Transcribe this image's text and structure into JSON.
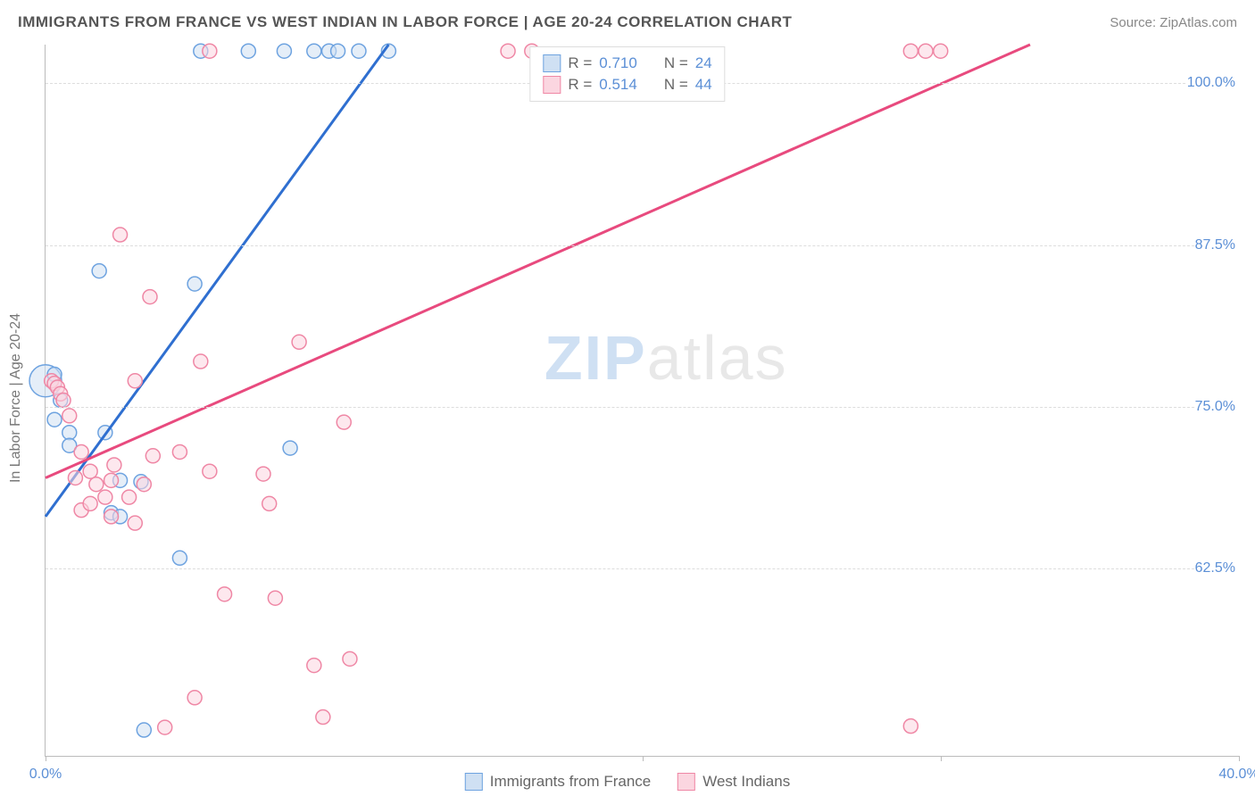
{
  "header": {
    "title": "IMMIGRANTS FROM FRANCE VS WEST INDIAN IN LABOR FORCE | AGE 20-24 CORRELATION CHART",
    "source_label": "Source:",
    "source_name": "ZipAtlas.com"
  },
  "watermark": {
    "part1": "ZIP",
    "part2": "atlas"
  },
  "chart": {
    "type": "scatter",
    "y_axis_title": "In Labor Force | Age 20-24",
    "background_color": "#ffffff",
    "grid_color": "#dddddd",
    "axis_color": "#bbbbbb",
    "tick_label_color": "#5b8fd6",
    "xlim": [
      0,
      40
    ],
    "ylim": [
      48,
      103
    ],
    "xticks": [
      {
        "v": 0.0,
        "label": "0.0%"
      },
      {
        "v": 20.0,
        "label": ""
      },
      {
        "v": 30.0,
        "label": ""
      },
      {
        "v": 40.0,
        "label": "40.0%"
      }
    ],
    "yticks": [
      {
        "v": 62.5,
        "label": "62.5%"
      },
      {
        "v": 75.0,
        "label": "75.0%"
      },
      {
        "v": 87.5,
        "label": "87.5%"
      },
      {
        "v": 100.0,
        "label": "100.0%"
      }
    ],
    "series": [
      {
        "name": "Immigrants from France",
        "fill": "#cfe0f3",
        "stroke": "#6ea3e0",
        "line_color": "#2f6fd0",
        "marker_radius_default": 8,
        "R": "0.710",
        "N": "24",
        "trend": {
          "x1": 0.0,
          "y1": 66.5,
          "x2": 11.5,
          "y2": 103.0
        },
        "points": [
          {
            "x": 0.0,
            "y": 77.0,
            "r": 18
          },
          {
            "x": 0.3,
            "y": 77.5
          },
          {
            "x": 0.3,
            "y": 74.0
          },
          {
            "x": 0.5,
            "y": 75.5
          },
          {
            "x": 0.8,
            "y": 73.0
          },
          {
            "x": 0.8,
            "y": 72.0
          },
          {
            "x": 1.8,
            "y": 85.5
          },
          {
            "x": 2.0,
            "y": 73.0
          },
          {
            "x": 2.2,
            "y": 66.8
          },
          {
            "x": 2.5,
            "y": 69.3
          },
          {
            "x": 2.5,
            "y": 66.5
          },
          {
            "x": 3.2,
            "y": 69.2
          },
          {
            "x": 3.3,
            "y": 50.0
          },
          {
            "x": 4.5,
            "y": 63.3
          },
          {
            "x": 5.0,
            "y": 84.5
          },
          {
            "x": 5.2,
            "y": 102.5
          },
          {
            "x": 6.8,
            "y": 102.5
          },
          {
            "x": 8.0,
            "y": 102.5
          },
          {
            "x": 8.2,
            "y": 71.8
          },
          {
            "x": 9.0,
            "y": 102.5
          },
          {
            "x": 9.5,
            "y": 102.5
          },
          {
            "x": 9.8,
            "y": 102.5
          },
          {
            "x": 10.5,
            "y": 102.5
          },
          {
            "x": 11.5,
            "y": 102.5
          }
        ]
      },
      {
        "name": "West Indians",
        "fill": "#fbd6e0",
        "stroke": "#ef87a5",
        "line_color": "#e84a7e",
        "marker_radius_default": 8,
        "R": "0.514",
        "N": "44",
        "trend": {
          "x1": 0.0,
          "y1": 69.5,
          "x2": 33.0,
          "y2": 103.0
        },
        "points": [
          {
            "x": 0.2,
            "y": 77.0
          },
          {
            "x": 0.3,
            "y": 76.8
          },
          {
            "x": 0.4,
            "y": 76.5
          },
          {
            "x": 0.5,
            "y": 76.0
          },
          {
            "x": 0.6,
            "y": 75.5
          },
          {
            "x": 0.8,
            "y": 74.3
          },
          {
            "x": 1.0,
            "y": 69.5
          },
          {
            "x": 1.2,
            "y": 71.5
          },
          {
            "x": 1.2,
            "y": 67.0
          },
          {
            "x": 1.5,
            "y": 70.0
          },
          {
            "x": 1.5,
            "y": 67.5
          },
          {
            "x": 1.7,
            "y": 69.0
          },
          {
            "x": 2.0,
            "y": 68.0
          },
          {
            "x": 2.2,
            "y": 69.3
          },
          {
            "x": 2.2,
            "y": 66.5
          },
          {
            "x": 2.3,
            "y": 70.5
          },
          {
            "x": 2.5,
            "y": 88.3
          },
          {
            "x": 2.8,
            "y": 68.0
          },
          {
            "x": 3.0,
            "y": 66.0
          },
          {
            "x": 3.0,
            "y": 77.0
          },
          {
            "x": 3.3,
            "y": 69.0
          },
          {
            "x": 3.5,
            "y": 83.5
          },
          {
            "x": 3.6,
            "y": 71.2
          },
          {
            "x": 4.0,
            "y": 50.2
          },
          {
            "x": 4.5,
            "y": 71.5
          },
          {
            "x": 5.0,
            "y": 52.5
          },
          {
            "x": 5.2,
            "y": 78.5
          },
          {
            "x": 5.5,
            "y": 102.5
          },
          {
            "x": 5.5,
            "y": 70.0
          },
          {
            "x": 6.0,
            "y": 60.5
          },
          {
            "x": 7.3,
            "y": 69.8
          },
          {
            "x": 7.5,
            "y": 67.5
          },
          {
            "x": 7.7,
            "y": 60.2
          },
          {
            "x": 8.5,
            "y": 80.0
          },
          {
            "x": 9.0,
            "y": 55.0
          },
          {
            "x": 9.3,
            "y": 51.0
          },
          {
            "x": 10.0,
            "y": 73.8
          },
          {
            "x": 10.2,
            "y": 55.5
          },
          {
            "x": 15.5,
            "y": 102.5
          },
          {
            "x": 16.3,
            "y": 102.5
          },
          {
            "x": 29.0,
            "y": 102.5
          },
          {
            "x": 29.5,
            "y": 102.5
          },
          {
            "x": 29.0,
            "y": 50.3
          },
          {
            "x": 30.0,
            "y": 102.5
          }
        ]
      }
    ],
    "top_legend_labels": {
      "R": "R =",
      "N": "N ="
    },
    "bottom_legend": [
      {
        "swatch_fill": "#cfe0f3",
        "swatch_stroke": "#6ea3e0",
        "label": "Immigrants from France"
      },
      {
        "swatch_fill": "#fbd6e0",
        "swatch_stroke": "#ef87a5",
        "label": "West Indians"
      }
    ]
  }
}
